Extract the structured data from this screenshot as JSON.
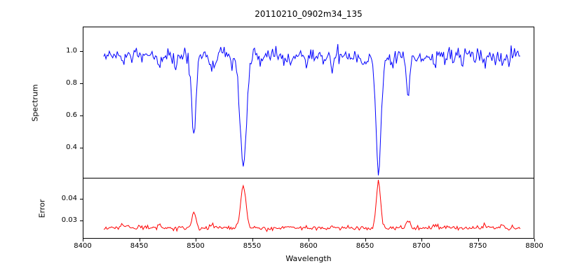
{
  "figure": {
    "title": "20110210_0902m34_135",
    "background": "#ffffff",
    "x_axis": {
      "label": "Wavelength",
      "lim": [
        8400,
        8800
      ],
      "ticks": [
        "8400",
        "8450",
        "8500",
        "8550",
        "8600",
        "8650",
        "8700",
        "8750",
        "8800"
      ]
    }
  },
  "chart_data": [
    {
      "type": "line",
      "name": "spectrum",
      "ylabel": "Spectrum",
      "color": "#0000ff",
      "ylim": [
        0.21,
        1.15
      ],
      "yticks": [
        "0.4",
        "0.6",
        "0.8",
        "1.0"
      ],
      "x_start": 8418,
      "x_end": 8788,
      "x_step": 1,
      "seed": 12345,
      "continuum": 0.97,
      "noise_sigma": 0.026,
      "absorption_lines": [
        {
          "center": 8498.0,
          "depth": 0.47,
          "width": 2.0
        },
        {
          "center": 8542.1,
          "depth": 0.68,
          "width": 3.0
        },
        {
          "center": 8662.1,
          "depth": 0.71,
          "width": 2.4
        },
        {
          "center": 8688.6,
          "depth": 0.23,
          "width": 1.6
        }
      ],
      "weak_lines": [
        {
          "center": 8434,
          "depth": 0.05,
          "width": 1.3
        },
        {
          "center": 8452,
          "depth": 0.04,
          "width": 1.2
        },
        {
          "center": 8468,
          "depth": 0.07,
          "width": 1.4
        },
        {
          "center": 8482,
          "depth": 0.06,
          "width": 1.3
        },
        {
          "center": 8514,
          "depth": 0.09,
          "width": 1.6
        },
        {
          "center": 8531,
          "depth": 0.05,
          "width": 1.2
        },
        {
          "center": 8556,
          "depth": 0.04,
          "width": 1.2
        },
        {
          "center": 8583,
          "depth": 0.05,
          "width": 1.3
        },
        {
          "center": 8598,
          "depth": 0.04,
          "width": 1.2
        },
        {
          "center": 8621,
          "depth": 0.07,
          "width": 1.4
        },
        {
          "center": 8648,
          "depth": 0.05,
          "width": 1.2
        },
        {
          "center": 8674,
          "depth": 0.07,
          "width": 1.3
        },
        {
          "center": 8712,
          "depth": 0.06,
          "width": 1.4
        },
        {
          "center": 8736,
          "depth": 0.05,
          "width": 1.2
        },
        {
          "center": 8757,
          "depth": 0.05,
          "width": 1.3
        },
        {
          "center": 8772,
          "depth": 0.04,
          "width": 1.2
        }
      ]
    },
    {
      "type": "line",
      "name": "error",
      "ylabel": "Error",
      "color": "#ff0000",
      "ylim": [
        0.0215,
        0.0495
      ],
      "yticks": [
        "0.03",
        "0.04"
      ],
      "x_start": 8418,
      "x_end": 8788,
      "x_step": 1,
      "seed": 67890,
      "baseline": 0.0262,
      "noise_sigma": 0.0005,
      "peaks": [
        {
          "center": 8498.0,
          "amp": 0.0073,
          "width": 1.8
        },
        {
          "center": 8542.1,
          "amp": 0.0195,
          "width": 2.4
        },
        {
          "center": 8662.1,
          "amp": 0.0215,
          "width": 1.9
        },
        {
          "center": 8688.6,
          "amp": 0.0035,
          "width": 1.5
        },
        {
          "center": 8434,
          "amp": 0.0015,
          "width": 1.4
        },
        {
          "center": 8468,
          "amp": 0.0013,
          "width": 1.4
        },
        {
          "center": 8514,
          "amp": 0.0018,
          "width": 1.5
        },
        {
          "center": 8621,
          "amp": 0.0012,
          "width": 1.4
        },
        {
          "center": 8712,
          "amp": 0.0012,
          "width": 1.4
        },
        {
          "center": 8757,
          "amp": 0.0012,
          "width": 1.4
        },
        {
          "center": 8772,
          "amp": 0.0015,
          "width": 1.4
        }
      ]
    }
  ]
}
